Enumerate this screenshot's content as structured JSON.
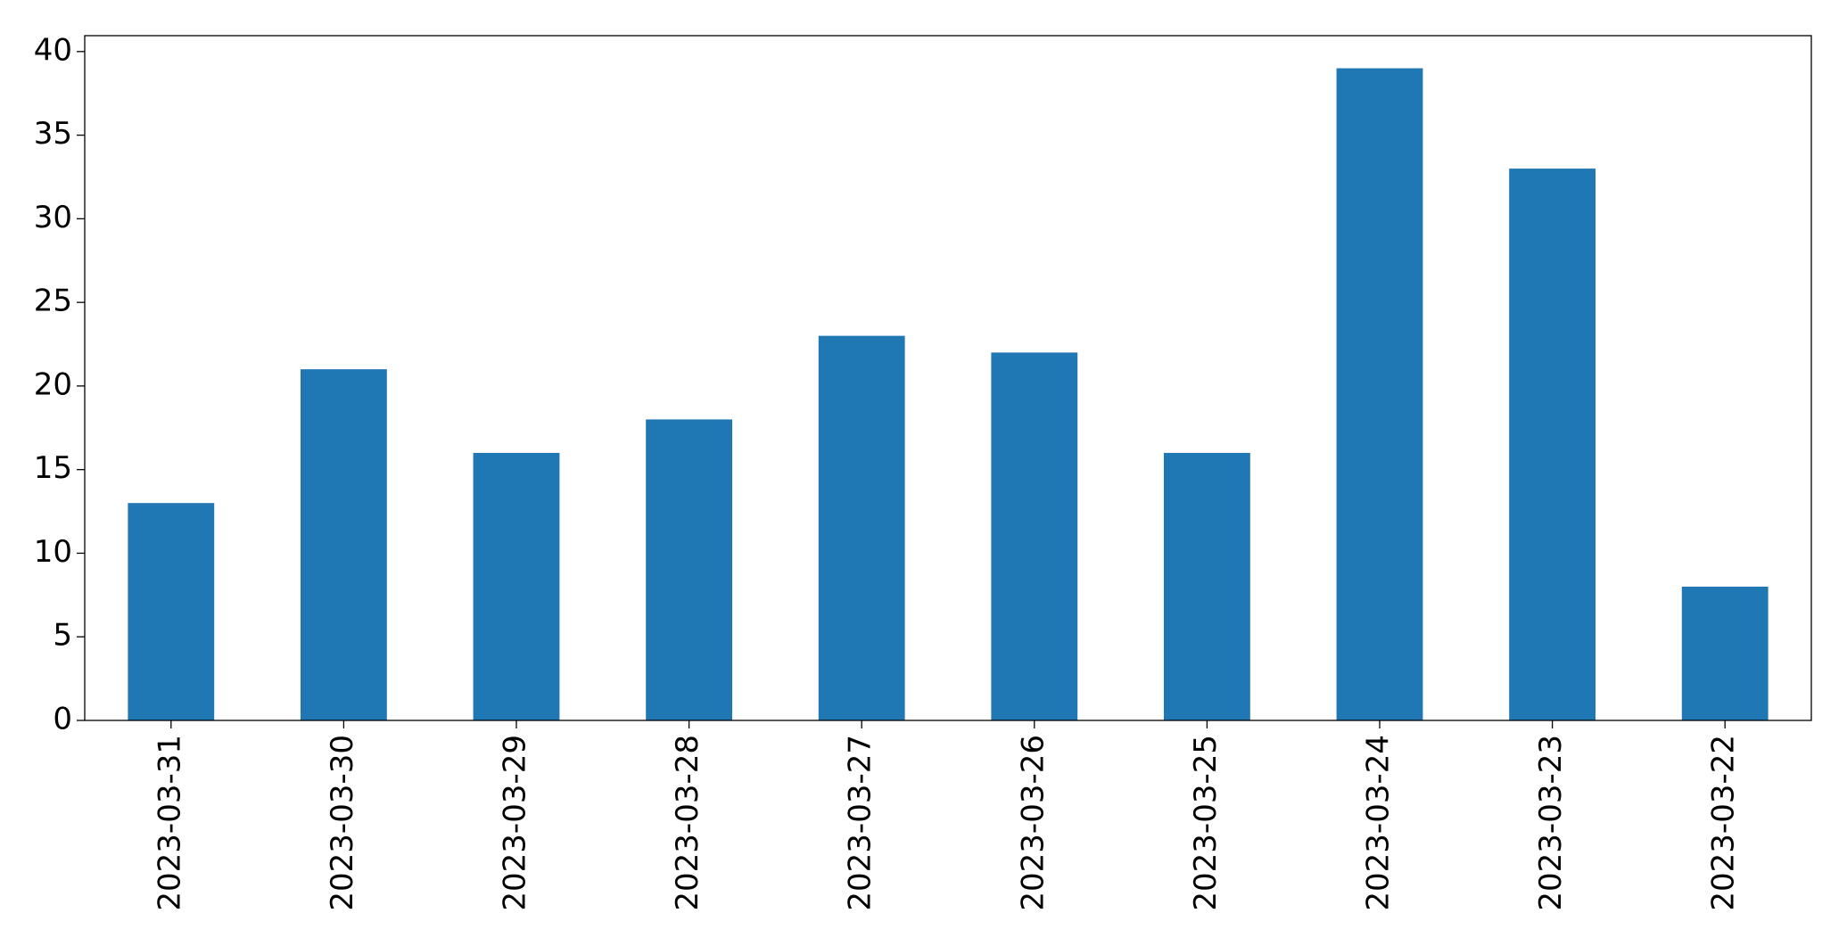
{
  "chart_data": {
    "type": "bar",
    "categories": [
      "2023-03-31",
      "2023-03-30",
      "2023-03-29",
      "2023-03-28",
      "2023-03-27",
      "2023-03-26",
      "2023-03-25",
      "2023-03-24",
      "2023-03-23",
      "2023-03-22"
    ],
    "values": [
      13,
      21,
      16,
      18,
      23,
      22,
      16,
      39,
      33,
      8
    ],
    "color": "#1f77b4",
    "ylim": [
      0,
      40.95
    ],
    "yticks": [
      0,
      5,
      10,
      15,
      20,
      25,
      30,
      35,
      40
    ],
    "grid": false
  }
}
